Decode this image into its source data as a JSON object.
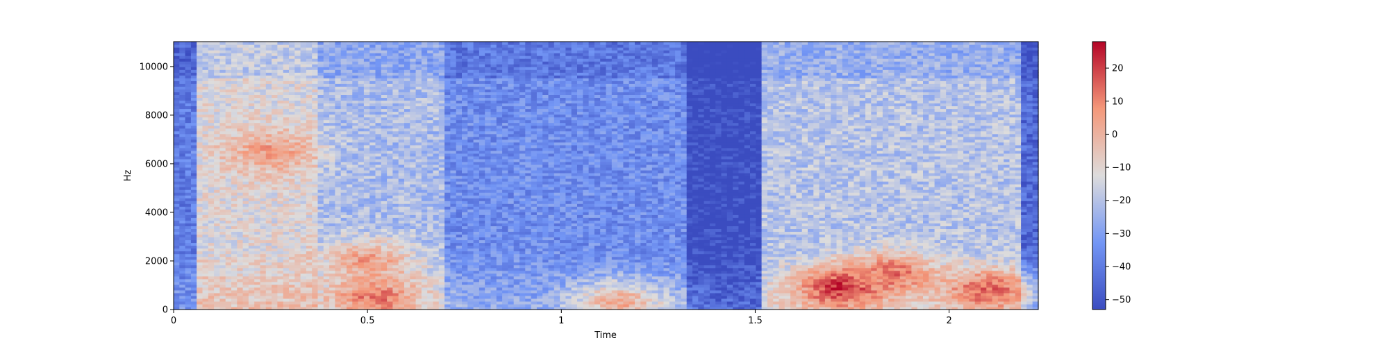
{
  "chart_data": {
    "type": "heatmap",
    "title": "",
    "xlabel": "Time",
    "ylabel": "Hz",
    "xlim": [
      0,
      2.23
    ],
    "ylim": [
      0,
      11025
    ],
    "x_ticks": [
      0,
      0.5,
      1,
      1.5,
      2
    ],
    "x_tick_labels": [
      "0",
      "0.5",
      "1",
      "1.5",
      "2"
    ],
    "y_ticks": [
      0,
      2000,
      4000,
      6000,
      8000,
      10000
    ],
    "y_tick_labels": [
      "0",
      "2000",
      "4000",
      "6000",
      "8000",
      "10000"
    ],
    "colorbar": {
      "range": [
        -53,
        28
      ],
      "ticks": [
        20,
        10,
        0,
        -10,
        -20,
        -30,
        -40,
        -50
      ],
      "tick_labels": [
        "20",
        "10",
        "0",
        "−10",
        "−20",
        "−30",
        "−40",
        "−50"
      ],
      "colormap": "coolwarm"
    },
    "segments": [
      {
        "t": [
          0.0,
          0.06
        ],
        "level_db": -40
      },
      {
        "t": [
          0.06,
          0.37
        ],
        "level_db": -12
      },
      {
        "t": [
          0.37,
          0.7
        ],
        "level_db": -22
      },
      {
        "t": [
          0.7,
          1.32
        ],
        "level_db": -35
      },
      {
        "t": [
          1.32,
          1.51
        ],
        "level_db": -53
      },
      {
        "t": [
          1.51,
          2.18
        ],
        "level_db": -20
      },
      {
        "t": [
          2.18,
          2.23
        ],
        "level_db": -45
      }
    ],
    "hotspots": [
      {
        "t": 0.25,
        "f": 6500,
        "level_db": 5
      },
      {
        "t": 0.52,
        "f": 500,
        "level_db": 12
      },
      {
        "t": 0.5,
        "f": 2000,
        "level_db": 5
      },
      {
        "t": 1.15,
        "f": 300,
        "level_db": 2
      },
      {
        "t": 1.72,
        "f": 900,
        "level_db": 22
      },
      {
        "t": 1.85,
        "f": 1500,
        "level_db": 12
      },
      {
        "t": 2.1,
        "f": 800,
        "level_db": 15
      }
    ]
  }
}
